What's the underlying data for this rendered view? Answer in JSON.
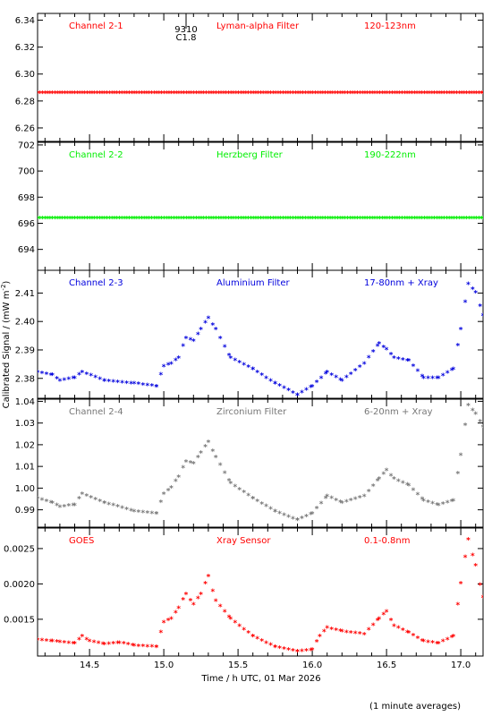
{
  "chart_data": {
    "type": "scatter",
    "xlabel": "Time / h UTC, 01 Mar 2026",
    "ylabel": "Calibrated Signal / (mW m",
    "ylabel_sup": "-2",
    "ylabel_end": ")",
    "footnote": "(1 minute averages)",
    "xlim": [
      14.15,
      17.15
    ],
    "xticks": [
      14.5,
      15.0,
      15.5,
      16.0,
      16.5,
      17.0
    ],
    "xtick_labels": [
      "14.5",
      "15.0",
      "15.5",
      "16.0",
      "16.5",
      "17.0"
    ],
    "flare_marker": {
      "x": 15.15,
      "label_top": "9310",
      "label_bottom": "C1.8"
    },
    "panels": [
      {
        "channel": "Channel 2-1",
        "filter": "Lyman-alpha Filter",
        "band": "120-123nm",
        "color": "#ff0000",
        "ylim": [
          6.25,
          6.345
        ],
        "yticks": [
          6.26,
          6.28,
          6.3,
          6.32,
          6.34
        ],
        "ytick_labels": [
          "6.26",
          "6.28",
          "6.30",
          "6.32",
          "6.34"
        ],
        "x": [
          14.15,
          17.15
        ],
        "y": [
          6.2855,
          6.2855
        ]
      },
      {
        "channel": "Channel 2-2",
        "filter": "Herzberg Filter",
        "band": "190-222nm",
        "color": "#00ee00",
        "ylim": [
          692.4,
          702.2
        ],
        "yticks": [
          694,
          696,
          698,
          700,
          702
        ],
        "ytick_labels": [
          "694",
          "696",
          "698",
          "700",
          "702"
        ],
        "x": [
          14.15,
          17.15
        ],
        "y": [
          696.35,
          696.35
        ]
      },
      {
        "channel": "Channel 2-3",
        "filter": "Aluminium Filter",
        "band": "17-80nm + Xray",
        "color": "#0000dd",
        "ylim": [
          2.373,
          2.418
        ],
        "yticks": [
          2.38,
          2.39,
          2.4,
          2.41
        ],
        "ytick_labels": [
          "2.38",
          "2.39",
          "2.40",
          "2.41"
        ],
        "x": [
          14.15,
          14.25,
          14.3,
          14.4,
          14.45,
          14.6,
          14.8,
          14.95,
          15.0,
          15.05,
          15.1,
          15.15,
          15.2,
          15.25,
          15.3,
          15.35,
          15.45,
          15.6,
          15.75,
          15.9,
          16.0,
          16.1,
          16.2,
          16.35,
          16.45,
          16.5,
          16.55,
          16.65,
          16.75,
          16.85,
          16.95,
          17.0,
          17.05,
          17.1,
          17.15
        ],
        "y": [
          2.382,
          2.381,
          2.379,
          2.38,
          2.382,
          2.379,
          2.378,
          2.377,
          2.384,
          2.385,
          2.387,
          2.394,
          2.393,
          2.397,
          2.401,
          2.397,
          2.387,
          2.383,
          2.378,
          2.374,
          2.377,
          2.382,
          2.379,
          2.385,
          2.392,
          2.39,
          2.387,
          2.386,
          2.38,
          2.38,
          2.383,
          2.397,
          2.413,
          2.41,
          2.402
        ]
      },
      {
        "channel": "Channel 2-4",
        "filter": "Zirconium Filter",
        "band": "6-20nm + Xray",
        "color": "#777777",
        "ylim": [
          0.982,
          1.041
        ],
        "yticks": [
          0.99,
          1.0,
          1.01,
          1.02,
          1.03,
          1.04
        ],
        "ytick_labels": [
          "0.99",
          "1.00",
          "1.01",
          "1.02",
          "1.03",
          "1.04"
        ],
        "x": [
          14.15,
          14.25,
          14.3,
          14.4,
          14.45,
          14.6,
          14.8,
          14.95,
          15.0,
          15.05,
          15.1,
          15.15,
          15.2,
          15.25,
          15.3,
          15.35,
          15.45,
          15.6,
          15.75,
          15.9,
          16.0,
          16.1,
          16.2,
          16.35,
          16.45,
          16.5,
          16.55,
          16.65,
          16.75,
          16.85,
          16.95,
          17.0,
          17.05,
          17.1,
          17.15
        ],
        "y": [
          0.995,
          0.993,
          0.991,
          0.992,
          0.997,
          0.993,
          0.989,
          0.988,
          0.997,
          1.0,
          1.005,
          1.012,
          1.011,
          1.016,
          1.021,
          1.014,
          1.002,
          0.995,
          0.989,
          0.985,
          0.988,
          0.996,
          0.993,
          0.996,
          1.004,
          1.008,
          1.004,
          1.001,
          0.994,
          0.992,
          0.994,
          1.015,
          1.038,
          1.034,
          1.028
        ]
      },
      {
        "channel": "GOES",
        "filter": "Xray Sensor",
        "band": "0.1-0.8nm",
        "color": "#ff0000",
        "ylim": [
          0.00098,
          0.00279
        ],
        "yticks": [
          0.0015,
          0.002,
          0.0025
        ],
        "ytick_labels": [
          "0.0015",
          "0.0020",
          "0.0025"
        ],
        "x": [
          14.15,
          14.25,
          14.3,
          14.4,
          14.45,
          14.5,
          14.6,
          14.7,
          14.8,
          14.95,
          15.0,
          15.05,
          15.1,
          15.15,
          15.2,
          15.25,
          15.3,
          15.35,
          15.45,
          15.6,
          15.75,
          15.9,
          16.0,
          16.05,
          16.1,
          16.2,
          16.35,
          16.45,
          16.5,
          16.55,
          16.65,
          16.75,
          16.85,
          16.95,
          17.0,
          17.05,
          17.1,
          17.15
        ],
        "y": [
          0.0012,
          0.00118,
          0.00117,
          0.00115,
          0.00125,
          0.00118,
          0.00114,
          0.00116,
          0.00112,
          0.0011,
          0.00145,
          0.0015,
          0.00165,
          0.00185,
          0.0017,
          0.00185,
          0.0021,
          0.00175,
          0.0015,
          0.00125,
          0.0011,
          0.00104,
          0.00106,
          0.00125,
          0.00137,
          0.00132,
          0.00128,
          0.0015,
          0.0016,
          0.0014,
          0.0013,
          0.00118,
          0.00115,
          0.00125,
          0.002,
          0.00262,
          0.00225,
          0.0018
        ]
      }
    ]
  }
}
